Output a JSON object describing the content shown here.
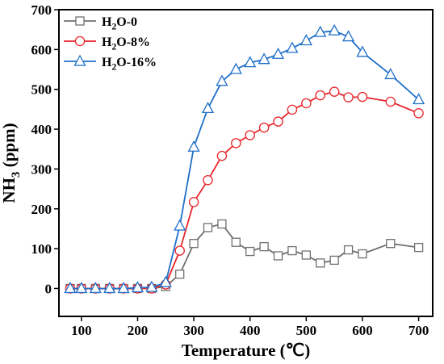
{
  "chart_data": {
    "type": "line",
    "xlabel": "Temperature (℃)",
    "ylabel_parts": [
      "NH",
      "3",
      " (ppm)"
    ],
    "xlim": [
      60,
      725
    ],
    "ylim": [
      -70,
      700
    ],
    "xticks": [
      100,
      200,
      300,
      400,
      500,
      600,
      700
    ],
    "yticks": [
      0,
      100,
      200,
      300,
      400,
      500,
      600,
      700
    ],
    "grid": false,
    "legend_position": "top-left",
    "series": [
      {
        "name_parts": [
          "H",
          "2",
          "O-0"
        ],
        "color": "#707070",
        "marker": "square",
        "x": [
          80,
          100,
          125,
          150,
          175,
          200,
          225,
          250,
          275,
          300,
          325,
          350,
          375,
          400,
          425,
          450,
          475,
          500,
          525,
          550,
          575,
          600,
          650,
          700
        ],
        "y": [
          0,
          0,
          0,
          0,
          0,
          0,
          0,
          5,
          36,
          113,
          153,
          162,
          116,
          93,
          105,
          82,
          95,
          84,
          64,
          71,
          97,
          87,
          113,
          103
        ]
      },
      {
        "name_parts": [
          "H",
          "2",
          "O-8%"
        ],
        "color": "#e8262c",
        "marker": "circle",
        "x": [
          80,
          100,
          125,
          150,
          175,
          200,
          225,
          250,
          275,
          300,
          325,
          350,
          375,
          400,
          425,
          450,
          475,
          500,
          525,
          550,
          575,
          600,
          650,
          700
        ],
        "y": [
          0,
          0,
          0,
          0,
          0,
          0,
          0,
          10,
          95,
          217,
          272,
          333,
          365,
          385,
          404,
          419,
          449,
          465,
          485,
          494,
          480,
          481,
          469,
          440
        ]
      },
      {
        "name_parts": [
          "H",
          "2",
          "O-16%"
        ],
        "color": "#1f6fc9",
        "marker": "triangle",
        "x": [
          80,
          100,
          125,
          150,
          175,
          200,
          225,
          250,
          275,
          300,
          325,
          350,
          375,
          400,
          425,
          450,
          475,
          500,
          525,
          550,
          575,
          600,
          650,
          700
        ],
        "y": [
          0,
          0,
          0,
          0,
          0,
          2,
          3,
          15,
          157,
          355,
          452,
          520,
          550,
          567,
          575,
          588,
          603,
          622,
          643,
          647,
          632,
          593,
          537,
          474
        ]
      }
    ]
  }
}
